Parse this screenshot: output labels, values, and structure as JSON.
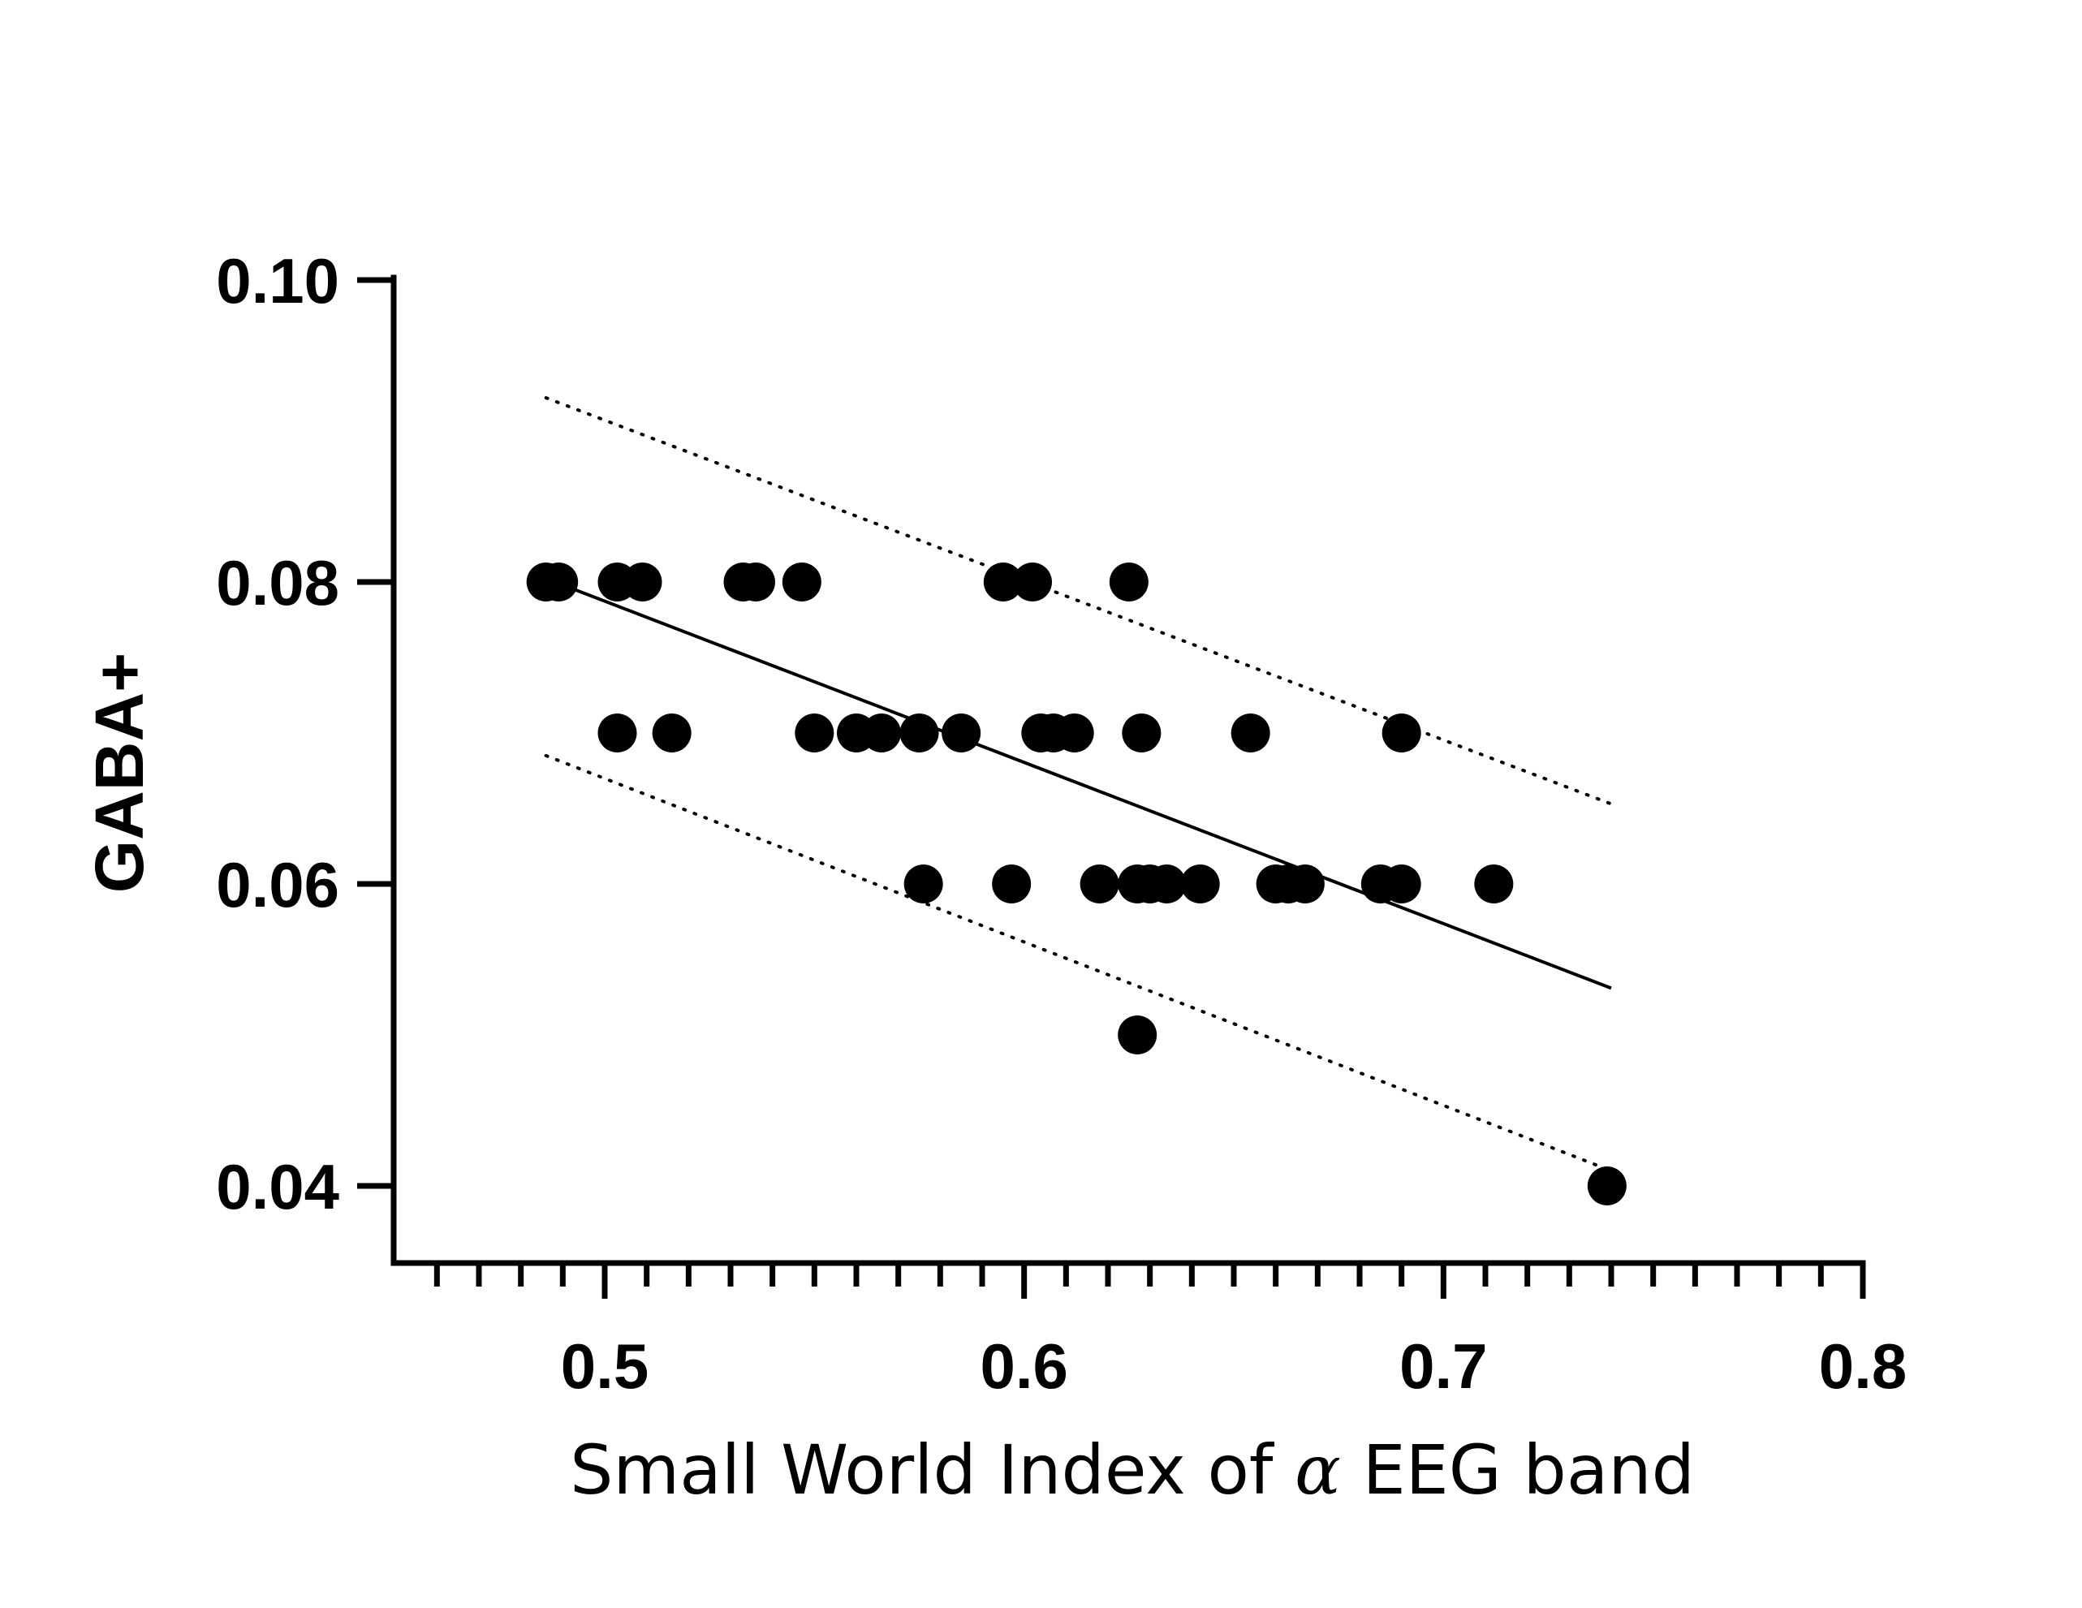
{
  "chart_data": {
    "type": "scatter",
    "title": "",
    "xlabel_parts": [
      "Small World Index of ",
      "α",
      " EEG band"
    ],
    "xlabel": "Small World Index of α EEG band",
    "ylabel": "GABA+",
    "xlim": [
      0.45,
      0.8
    ],
    "ylim": [
      0.035,
      0.1
    ],
    "x_ticks": [
      0.5,
      0.6,
      0.7,
      0.8
    ],
    "x_tick_labels": [
      "0.5",
      "0.6",
      "0.7",
      "0.8"
    ],
    "x_minor_step": 0.01,
    "y_ticks": [
      0.04,
      0.06,
      0.08,
      0.1
    ],
    "y_tick_labels": [
      "0.04",
      "0.06",
      "0.08",
      "0.10"
    ],
    "grid": false,
    "legend": "none",
    "points": [
      {
        "x": 0.486,
        "y": 0.08
      },
      {
        "x": 0.489,
        "y": 0.08
      },
      {
        "x": 0.503,
        "y": 0.08
      },
      {
        "x": 0.509,
        "y": 0.08
      },
      {
        "x": 0.533,
        "y": 0.08
      },
      {
        "x": 0.536,
        "y": 0.08
      },
      {
        "x": 0.547,
        "y": 0.08
      },
      {
        "x": 0.595,
        "y": 0.08
      },
      {
        "x": 0.602,
        "y": 0.08
      },
      {
        "x": 0.625,
        "y": 0.08
      },
      {
        "x": 0.503,
        "y": 0.07
      },
      {
        "x": 0.516,
        "y": 0.07
      },
      {
        "x": 0.55,
        "y": 0.07
      },
      {
        "x": 0.56,
        "y": 0.07
      },
      {
        "x": 0.566,
        "y": 0.07
      },
      {
        "x": 0.575,
        "y": 0.07
      },
      {
        "x": 0.585,
        "y": 0.07
      },
      {
        "x": 0.604,
        "y": 0.07
      },
      {
        "x": 0.607,
        "y": 0.07
      },
      {
        "x": 0.612,
        "y": 0.07
      },
      {
        "x": 0.628,
        "y": 0.07
      },
      {
        "x": 0.654,
        "y": 0.07
      },
      {
        "x": 0.69,
        "y": 0.07
      },
      {
        "x": 0.576,
        "y": 0.06
      },
      {
        "x": 0.597,
        "y": 0.06
      },
      {
        "x": 0.618,
        "y": 0.06
      },
      {
        "x": 0.627,
        "y": 0.06
      },
      {
        "x": 0.63,
        "y": 0.06
      },
      {
        "x": 0.634,
        "y": 0.06
      },
      {
        "x": 0.642,
        "y": 0.06
      },
      {
        "x": 0.66,
        "y": 0.06
      },
      {
        "x": 0.663,
        "y": 0.06
      },
      {
        "x": 0.667,
        "y": 0.06
      },
      {
        "x": 0.685,
        "y": 0.06
      },
      {
        "x": 0.69,
        "y": 0.06
      },
      {
        "x": 0.712,
        "y": 0.06
      },
      {
        "x": 0.627,
        "y": 0.05
      },
      {
        "x": 0.739,
        "y": 0.04
      }
    ],
    "fit_line": {
      "x": [
        0.49,
        0.74
      ],
      "y": [
        0.0798,
        0.0531
      ],
      "style": "solid"
    },
    "confidence_bands": [
      {
        "x": [
          0.486,
          0.74
        ],
        "y": [
          0.0922,
          0.0653
        ],
        "style": "dotted"
      },
      {
        "x": [
          0.486,
          0.74
        ],
        "y": [
          0.0685,
          0.041
        ],
        "style": "dotted"
      }
    ]
  }
}
